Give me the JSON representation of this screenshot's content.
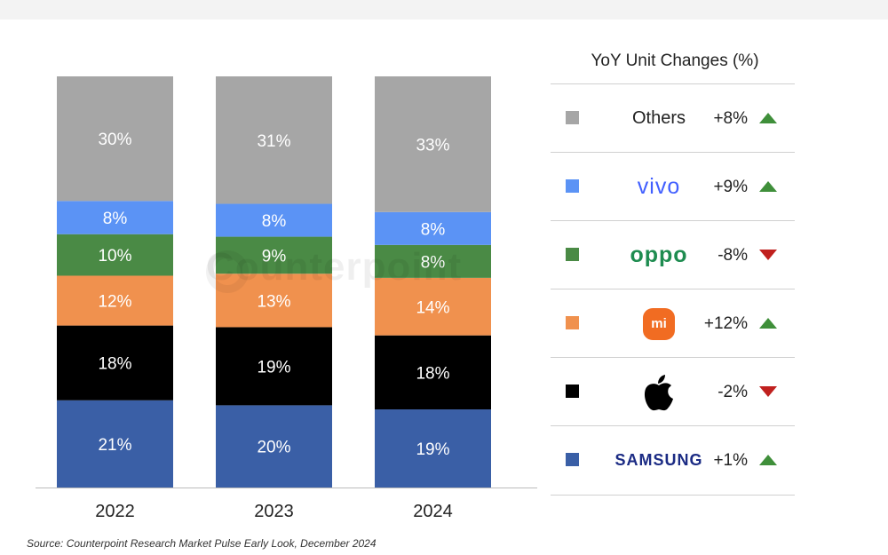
{
  "chart_data": {
    "type": "bar",
    "stacked": true,
    "categories": [
      "2022",
      "2023",
      "2024"
    ],
    "series": [
      {
        "name": "SAMSUNG",
        "color": "#3a5fa6",
        "values": [
          21,
          20,
          19
        ]
      },
      {
        "name": "Apple",
        "color": "#000000",
        "values": [
          18,
          19,
          18
        ]
      },
      {
        "name": "Xiaomi",
        "color": "#f0914e",
        "values": [
          12,
          13,
          14
        ]
      },
      {
        "name": "oppo",
        "color": "#4a8a45",
        "values": [
          10,
          9,
          8
        ]
      },
      {
        "name": "vivo",
        "color": "#5b93f5",
        "values": [
          8,
          8,
          8
        ]
      },
      {
        "name": "Others",
        "color": "#a6a6a6",
        "values": [
          30,
          31,
          33
        ]
      }
    ],
    "value_format": "percent",
    "ylim": [
      0,
      100
    ],
    "legend_title": "YoY Unit Changes (%)"
  },
  "legend": {
    "title": "YoY Unit Changes (%)",
    "items": [
      {
        "brand": "Others",
        "logo_text": "Others",
        "color": "#a6a6a6",
        "change": "+8%",
        "direction": "up"
      },
      {
        "brand": "vivo",
        "logo_text": "vivo",
        "color": "#5b93f5",
        "change": "+9%",
        "direction": "up"
      },
      {
        "brand": "oppo",
        "logo_text": "oppo",
        "color": "#4a8a45",
        "change": "-8%",
        "direction": "down"
      },
      {
        "brand": "Xiaomi",
        "logo_text": "mi",
        "color": "#f0914e",
        "change": "+12%",
        "direction": "up"
      },
      {
        "brand": "Apple",
        "logo_icon": "apple-icon",
        "color": "#000000",
        "change": "-2%",
        "direction": "down"
      },
      {
        "brand": "SAMSUNG",
        "logo_text": "SAMSUNG",
        "color": "#3a5fa6",
        "change": "+1%",
        "direction": "up"
      }
    ]
  },
  "colors": {
    "up": "#3f8f3a",
    "down": "#c0201e",
    "axis": "#bbbbbb"
  },
  "watermark": "Counterpoint",
  "source": "Source: Counterpoint Research Market Pulse Early Look, December 2024"
}
